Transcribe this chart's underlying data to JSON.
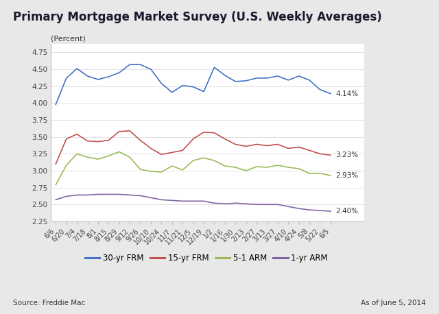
{
  "title": "Primary Mortgage Market Survey (U.S. Weekly Averages)",
  "ylabel": "(Percent)",
  "source_text": "Source: Freddie Mac",
  "date_text": "As of June 5, 2014",
  "ylim": [
    2.25,
    4.875
  ],
  "yticks": [
    2.25,
    2.5,
    2.75,
    3.0,
    3.25,
    3.5,
    3.75,
    4.0,
    4.25,
    4.5,
    4.75
  ],
  "x_labels": [
    "6/6",
    "6/20",
    "7/4",
    "7/18",
    "8/1",
    "8/15",
    "8/29",
    "9/12",
    "9/26",
    "10/10",
    "10/24",
    "11/7",
    "11/21",
    "12/5",
    "12/19",
    "1/2",
    "1/16",
    "1/30",
    "2/13",
    "2/27",
    "3/13",
    "3/27",
    "4/10",
    "4/24",
    "5/8",
    "5/22",
    "6/5"
  ],
  "end_labels": {
    "frm30": "4.14%",
    "frm15": "3.23%",
    "arm51": "2.93%",
    "arm1": "2.40%"
  },
  "legend": [
    "30-yr FRM",
    "15-yr FRM",
    "5-1 ARM",
    "1-yr ARM"
  ],
  "colors": {
    "frm30": "#4472C4",
    "frm15": "#C0504D",
    "arm51": "#9BBB59",
    "arm1": "#8064A2"
  },
  "frm30": [
    3.98,
    4.37,
    4.51,
    4.4,
    4.35,
    4.39,
    4.45,
    4.57,
    4.57,
    4.5,
    4.29,
    4.16,
    4.26,
    4.24,
    4.17,
    4.53,
    4.41,
    4.32,
    4.33,
    4.37,
    4.37,
    4.4,
    4.34,
    4.4,
    4.34,
    4.2,
    4.14
  ],
  "frm15": [
    3.1,
    3.47,
    3.54,
    3.44,
    3.43,
    3.45,
    3.58,
    3.59,
    3.45,
    3.33,
    3.24,
    3.27,
    3.3,
    3.47,
    3.57,
    3.56,
    3.47,
    3.39,
    3.36,
    3.39,
    3.37,
    3.39,
    3.33,
    3.35,
    3.3,
    3.25,
    3.23
  ],
  "arm51": [
    2.79,
    3.08,
    3.25,
    3.2,
    3.17,
    3.22,
    3.28,
    3.2,
    3.02,
    2.99,
    2.98,
    3.07,
    3.01,
    3.15,
    3.19,
    3.15,
    3.07,
    3.05,
    3.0,
    3.06,
    3.05,
    3.08,
    3.05,
    3.03,
    2.96,
    2.96,
    2.93
  ],
  "arm1": [
    2.57,
    2.62,
    2.64,
    2.64,
    2.65,
    2.65,
    2.65,
    2.64,
    2.63,
    2.6,
    2.57,
    2.56,
    2.55,
    2.55,
    2.55,
    2.52,
    2.51,
    2.52,
    2.51,
    2.5,
    2.5,
    2.5,
    2.47,
    2.44,
    2.42,
    2.41,
    2.4
  ],
  "bg_color": "#e8e8e8",
  "chart_bg": "#ffffff",
  "title_fontsize": 12,
  "label_fontsize": 8,
  "tick_fontsize": 7.5,
  "legend_fontsize": 8.5
}
